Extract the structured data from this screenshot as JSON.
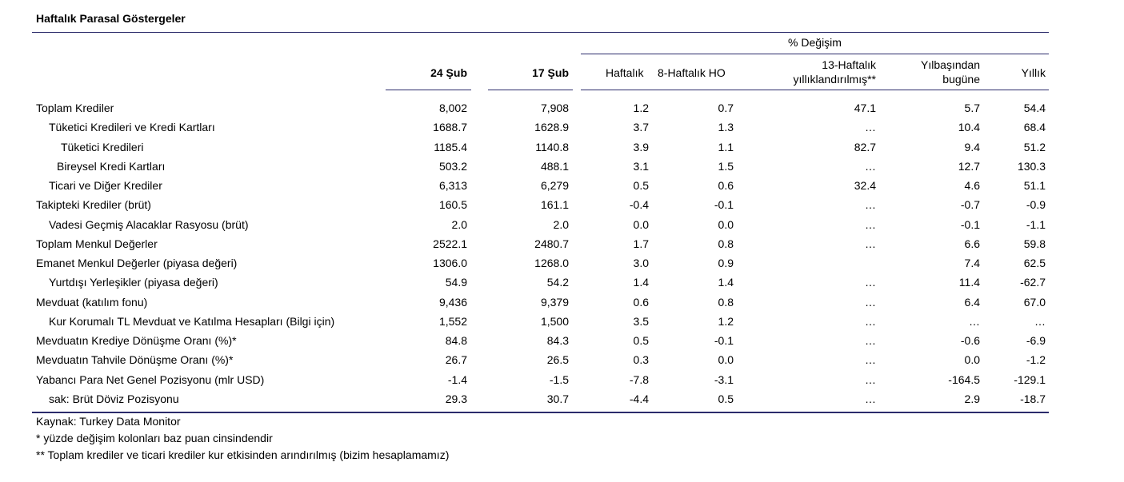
{
  "title": "Haftalık Parasal Göstergeler",
  "header": {
    "group_label": "% Değişim",
    "col1": "24 Şub",
    "col2": "17 Şub",
    "col3": "Haftalık",
    "col4": "8-Haftalık HO",
    "col5_line1": "13-Haftalık",
    "col5_line2": "yıllıklandırılmış**",
    "col6_line1": "Yılbaşından",
    "col6_line2": "bugüne",
    "col7": "Yıllık"
  },
  "rows": [
    {
      "label": "Toplam Krediler",
      "indent": 0,
      "v": [
        "8,002",
        "7,908",
        "1.2",
        "0.7",
        "47.1",
        "5.7",
        "54.4"
      ]
    },
    {
      "label": "Tüketici Kredileri ve Kredi Kartları",
      "indent": 1,
      "v": [
        "1688.7",
        "1628.9",
        "3.7",
        "1.3",
        "…",
        "10.4",
        "68.4"
      ]
    },
    {
      "label": "Tüketici Kredileri",
      "indent": 2,
      "v": [
        "1185.4",
        "1140.8",
        "3.9",
        "1.1",
        "82.7",
        "9.4",
        "51.2"
      ]
    },
    {
      "label": "Bireysel Kredi Kartları",
      "indent": 3,
      "v": [
        "503.2",
        "488.1",
        "3.1",
        "1.5",
        "…",
        "12.7",
        "130.3"
      ]
    },
    {
      "label": "Ticari ve Diğer Krediler",
      "indent": 1,
      "v": [
        "6,313",
        "6,279",
        "0.5",
        "0.6",
        "32.4",
        "4.6",
        "51.1"
      ]
    },
    {
      "label": "Takipteki Krediler (brüt)",
      "indent": 0,
      "v": [
        "160.5",
        "161.1",
        "-0.4",
        "-0.1",
        "…",
        "-0.7",
        "-0.9"
      ]
    },
    {
      "label": "Vadesi Geçmiş Alacaklar Rasyosu (brüt)",
      "indent": 1,
      "v": [
        "2.0",
        "2.0",
        "0.0",
        "0.0",
        "…",
        "-0.1",
        "-1.1"
      ]
    },
    {
      "label": "Toplam Menkul Değerler",
      "indent": 0,
      "v": [
        "2522.1",
        "2480.7",
        "1.7",
        "0.8",
        "…",
        "6.6",
        "59.8"
      ]
    },
    {
      "label": "Emanet Menkul Değerler (piyasa değeri)",
      "indent": 0,
      "v": [
        "1306.0",
        "1268.0",
        "3.0",
        "0.9",
        "",
        "7.4",
        "62.5"
      ]
    },
    {
      "label": "Yurtdışı Yerleşikler (piyasa değeri)",
      "indent": 1,
      "v": [
        "54.9",
        "54.2",
        "1.4",
        "1.4",
        "…",
        "11.4",
        "-62.7"
      ]
    },
    {
      "label": "Mevduat (katılım fonu)",
      "indent": 0,
      "v": [
        "9,436",
        "9,379",
        "0.6",
        "0.8",
        "…",
        "6.4",
        "67.0"
      ]
    },
    {
      "label": "Kur Korumalı TL Mevduat ve Katılma Hesapları (Bilgi için)",
      "indent": 1,
      "v": [
        "1,552",
        "1,500",
        "3.5",
        "1.2",
        "…",
        "…",
        "…"
      ]
    },
    {
      "label": "Mevduatın Krediye Dönüşme Oranı (%)*",
      "indent": 0,
      "v": [
        "84.8",
        "84.3",
        "0.5",
        "-0.1",
        "…",
        "-0.6",
        "-6.9"
      ]
    },
    {
      "label": "Mevduatın Tahvile Dönüşme Oranı (%)*",
      "indent": 0,
      "v": [
        "26.7",
        "26.5",
        "0.3",
        "0.0",
        "…",
        "0.0",
        "-1.2"
      ]
    },
    {
      "label": "Yabancı Para Net Genel Pozisyonu (mlr USD)",
      "indent": 0,
      "v": [
        "-1.4",
        "-1.5",
        "-7.8",
        "-3.1",
        "…",
        "-164.5",
        "-129.1"
      ]
    },
    {
      "label": "sak: Brüt Döviz Pozisyonu",
      "indent": 1,
      "v": [
        "29.3",
        "30.7",
        "-4.4",
        "0.5",
        "…",
        "2.9",
        "-18.7"
      ]
    }
  ],
  "footnotes": [
    "Kaynak: Turkey Data Monitor",
    "* yüzde değişim kolonları baz puan cinsindendir",
    "** Toplam krediler ve ticari krediler kur etkisinden arındırılmış (bizim hesaplamamız)"
  ]
}
